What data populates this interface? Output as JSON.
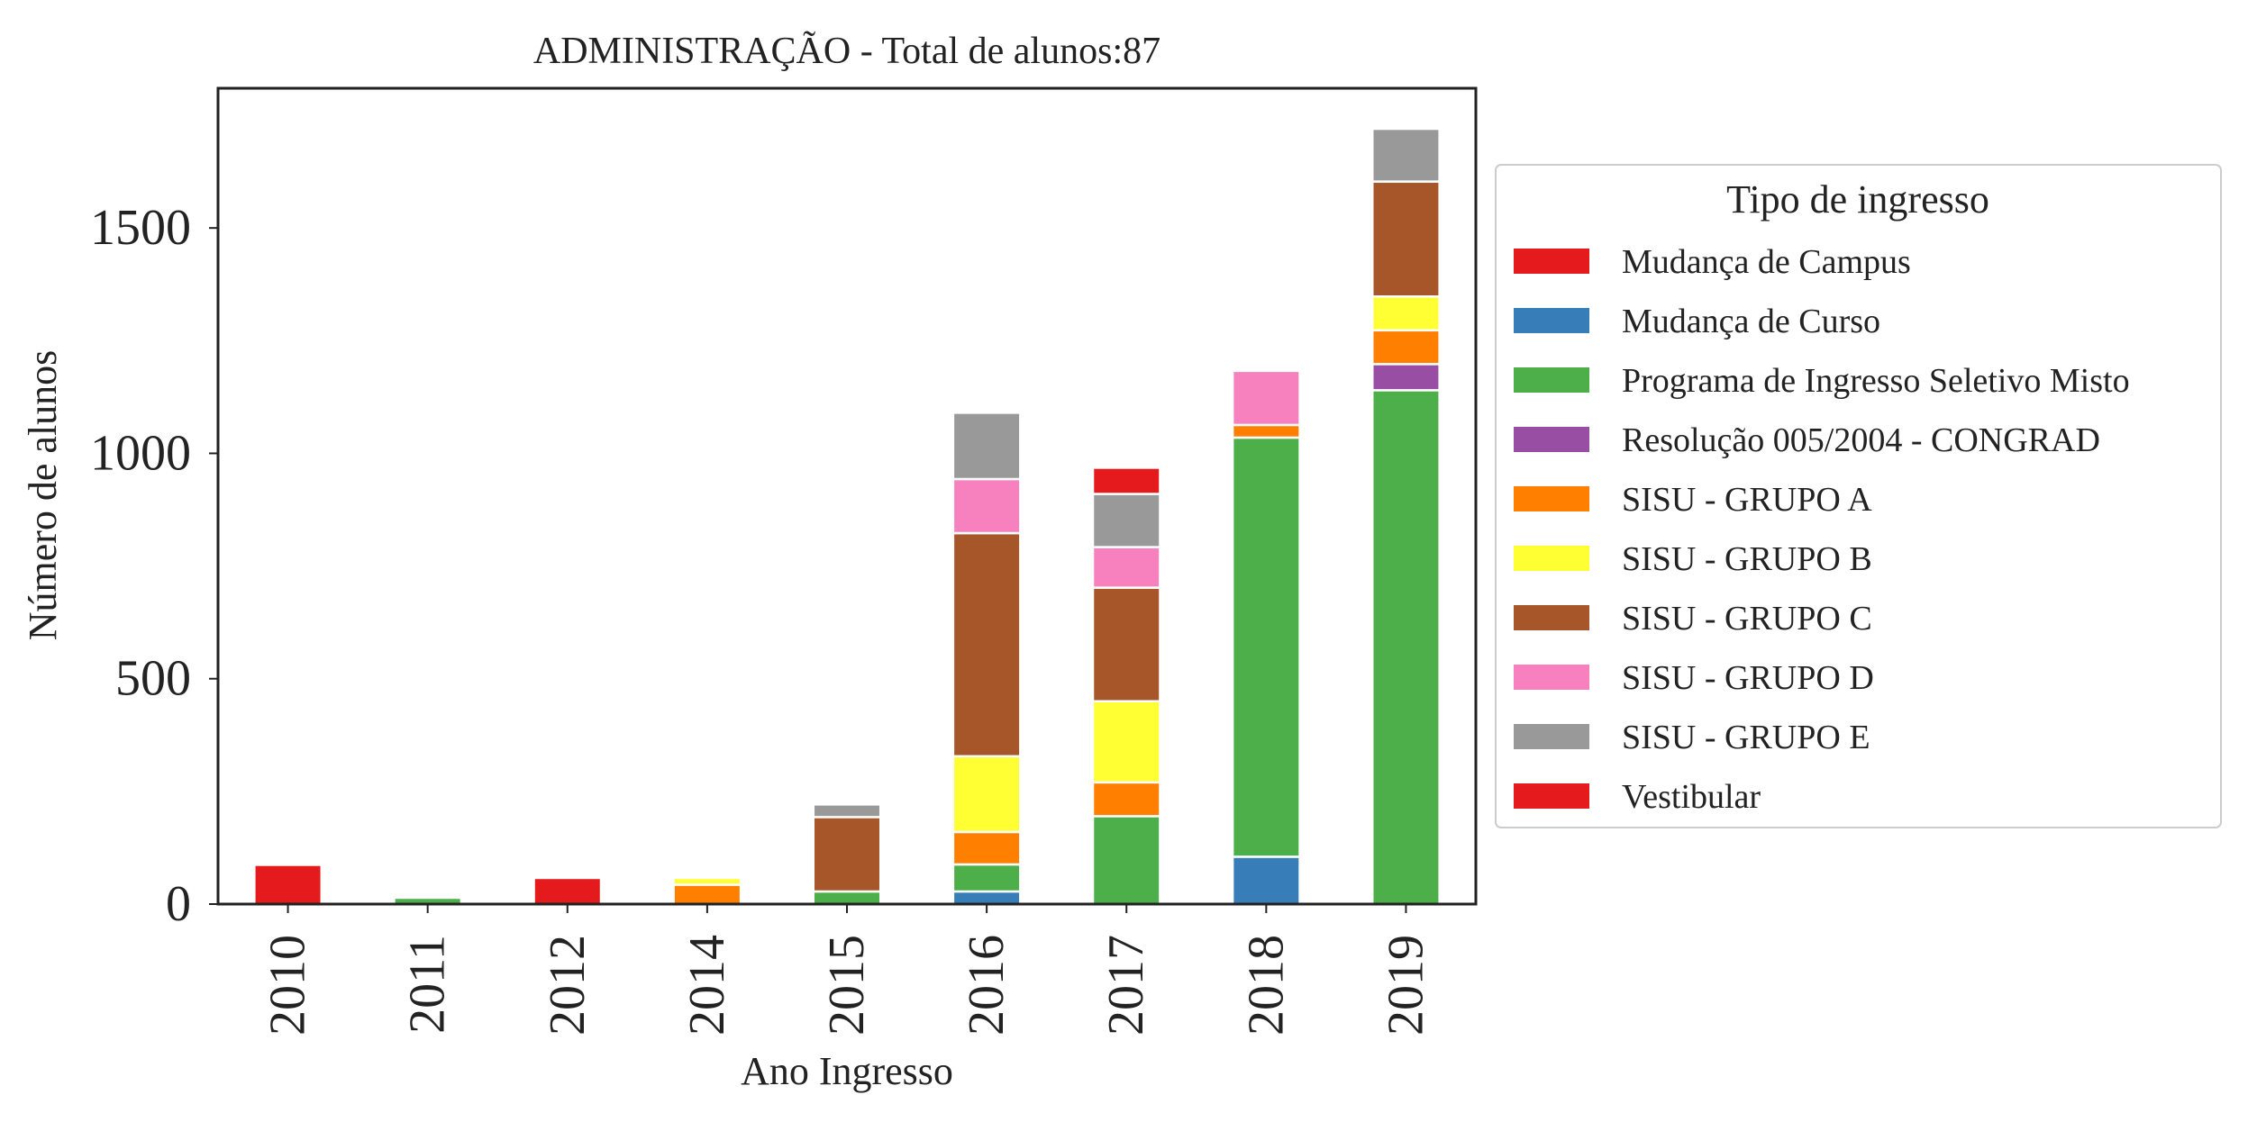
{
  "chart_data": {
    "type": "bar",
    "stacked": true,
    "title": "ADMINISTRAÇÃO - Total de alunos:87",
    "xlabel": "Ano Ingresso",
    "ylabel": "Número de alunos",
    "categories": [
      "2010",
      "2011",
      "2012",
      "2014",
      "2015",
      "2016",
      "2017",
      "2018",
      "2019"
    ],
    "ylim": [
      0,
      1810
    ],
    "yticks": [
      0,
      500,
      1000,
      1500
    ],
    "grid": false,
    "legend": {
      "title": "Tipo de ingresso",
      "placement": "outside-right"
    },
    "series": [
      {
        "name": "Mudança de Campus",
        "color": "#e41a1c",
        "values": [
          0,
          0,
          0,
          0,
          0,
          0,
          0,
          0,
          0
        ]
      },
      {
        "name": "Mudança de Curso",
        "color": "#377eb8",
        "values": [
          0,
          0,
          0,
          0,
          0,
          28,
          0,
          105,
          0
        ]
      },
      {
        "name": "Programa de Ingresso Seletivo Misto",
        "color": "#4daf4a",
        "values": [
          0,
          14,
          0,
          0,
          28,
          60,
          195,
          930,
          1140
        ]
      },
      {
        "name": "Resolução 005/2004 - CONGRAD",
        "color": "#984ea3",
        "values": [
          0,
          0,
          0,
          0,
          0,
          0,
          0,
          0,
          58
        ]
      },
      {
        "name": "SISU - GRUPO A",
        "color": "#ff7f00",
        "values": [
          0,
          0,
          0,
          43,
          0,
          72,
          75,
          28,
          75
        ]
      },
      {
        "name": "SISU - GRUPO B",
        "color": "#ffff33",
        "values": [
          0,
          0,
          0,
          15,
          0,
          168,
          180,
          0,
          75
        ]
      },
      {
        "name": "SISU - GRUPO C",
        "color": "#a65628",
        "values": [
          0,
          0,
          0,
          0,
          165,
          495,
          252,
          0,
          255
        ]
      },
      {
        "name": "SISU - GRUPO D",
        "color": "#f781bf",
        "values": [
          0,
          0,
          0,
          0,
          0,
          120,
          90,
          120,
          0
        ]
      },
      {
        "name": "SISU - GRUPO E",
        "color": "#999999",
        "values": [
          0,
          0,
          0,
          0,
          28,
          147,
          118,
          0,
          117
        ]
      },
      {
        "name": "Vestibular",
        "color": "#e41a1c",
        "values": [
          87,
          0,
          58,
          0,
          0,
          0,
          58,
          0,
          0
        ]
      }
    ]
  }
}
